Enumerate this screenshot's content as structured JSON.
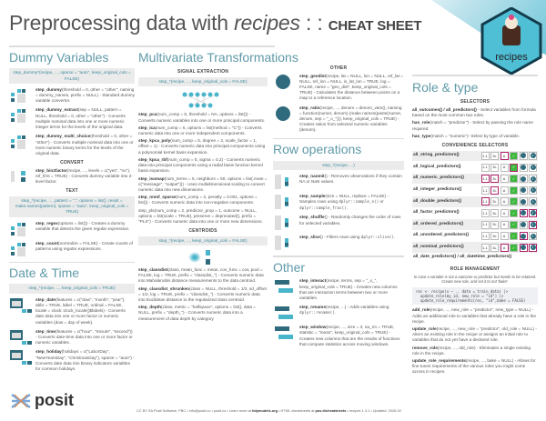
{
  "title": {
    "pre": "Preprocessing data with ",
    "pkg": "recipes",
    "sep": " : : ",
    "cheat": "CHEAT SHEET"
  },
  "logo": {
    "hex_text": "recipes",
    "brand": "posit"
  },
  "colors": {
    "accent": "#5f9aa8",
    "highlight": "#b0226a",
    "icon_light": "#49b5cb",
    "icon_dark": "#2f6b7c"
  },
  "dummy": {
    "heading": "Dummy Variables",
    "box": "step_dummy*(recipe, ..., sparse = \"auto\", keep_original_cols = FALSE)",
    "entries": [
      {
        "name": "step_dummy",
        "args": "(threshold = 0, other = \"other\", naming = dummy_names, prefix = NULL)",
        "desc": " - Standard dummy variable converter."
      },
      {
        "name": "step_dummy_extract",
        "args": "(sep = NULL, pattern = NULL, threshold = 0, other = \"other\")",
        "desc": " - Converts multiple nominal data into one or more numeric integer terms for the levels of the original data."
      },
      {
        "name": "step_dummy_multi_choice",
        "args": "(threshold = 0, other = \"other\")",
        "desc": " - Converts multiple nominal data into one or more numeric binary terms for the levels of the original data."
      }
    ],
    "convert_label": "CONVERT",
    "convert": [
      {
        "name": "step_bin2factor",
        "args": "(recipe, ..., levels = c(\"yes\", \"no\"), ref_first = TRUE)",
        "desc": " - Converts dummy variable into 2-level factor."
      }
    ],
    "text_label": "TEXT",
    "text_box": "step_*(recipe, ..., pattern = \".\", options = list(), result = make.names(pattern), sparse = \"auto\", keep_original_cols = TRUE)",
    "regex_icon_words": [
      "recipes",
      "is",
      "great"
    ],
    "text": [
      {
        "name": "step_regex",
        "args": "(options = list())",
        "desc": " - Creates a dummy variable that detects the given regular expression."
      },
      {
        "name": "step_count",
        "args": "(normalize = FALSE)",
        "desc": " - Create counts of patterns using regular expressions."
      }
    ]
  },
  "date": {
    "heading": "Date & Time",
    "box": "step_*(recipe, ..., keep_original_cols = TRUE)",
    "entries": [
      {
        "name": "step_date",
        "args": "(features = c(\"dow\", \"month\", \"year\"), abbr = TRUE, label = TRUE, ordinal = FALSE, locale = clock::clock_locale()$labels)",
        "desc": " - Converts date data into one or more factor or numeric variables (dow = day of week)."
      },
      {
        "name": "step_time",
        "args": "(features = c(\"hour\", \"minute\", \"second\"))",
        "desc": " - Converts date-time data into one or more factor or numeric variables."
      },
      {
        "name": "step_holiday",
        "args": "(holidays = c(\"LaborDay\", \"NewYearsDay\", \"ChristmasDay\"), sparse = \"auto\")",
        "desc": " - Converts date data into binary indicators variables for common holidays."
      }
    ]
  },
  "multi": {
    "heading": "Multivariate Transformations",
    "signal_label": "SIGNAL EXTRACTION",
    "signal_box": "step_*(recipe, ..., keep_original_cols = FALSE)",
    "signal": [
      {
        "name": "step_pca",
        "args": "(num_comp = 5, threshold = NA, options = list())",
        "desc": " - Converts numeric variables into one or more principal components."
      },
      {
        "name": "step_ica",
        "args": "(num_comp = 5, options = list(method = \"C\"))",
        "desc": " - Converts numeric data into one or more independent components."
      },
      {
        "name": "step_kpca_poly",
        "args": "(num_comp = 5, degree = 2, scale_factor = 1, offset = 1)",
        "desc": " - Converts numeric data into principal components using a polynomial kernel basis expansion."
      },
      {
        "name": "step_kpca_rbf",
        "args": "(num_comp = 5, sigma = 0.2)",
        "desc": " - Converts numeric data into principal components using a radial basis function kernel basis expansion."
      },
      {
        "name": "step_isomap",
        "args": "(num_terms = 5, neighbors = 50, options = list(.mute = c(\"message\", \"output\")))",
        "desc": " - Uses multidimensional scaling to convert numeric data into new dimensions."
      },
      {
        "name": "step_nnmf_sparse",
        "args": "(num_comp = 2, penalty = 0.001, options = list())",
        "desc": " - Converts numeric data into non-negative components."
      },
      {
        "name": "",
        "args": "step_pls(num_comp = 2, predictor_prop = 1, outcome = NULL, options = list(scale = TRUE), preserve = deprecated(), prefix = \"PLS\")",
        "desc": " - Converts numeric data into one or more new dimensions."
      }
    ],
    "centroids_label": "CENTROIDS",
    "centroids_box": "step_*(recipe, ..., keep_original_cols = FALSE)",
    "centroids": [
      {
        "name": "step_classdist",
        "args": "(class, mean_func = mean, cov_func = cov, pool = FALSE, log = TRUE, prefix = \"classdist_\")",
        "desc": " - Converts numeric data into Mahalanobis distance measurements to the data centroid."
      },
      {
        "name": "step_classdist_shrunken",
        "args": "(class = NULL, threshold = 1/2, sd_offset = 1/2, log = TRUE, prefix = \"classdist_\")",
        "desc": " - Converts numeric data into Euclidean distance to the regularized class centroid."
      },
      {
        "name": "step_depth",
        "args": "(class, metric = \"halfspace\", options = list(), data = NULL, prefix = \"depth_\")",
        "desc": " - Converts numeric data into a measurement of data depth by category"
      }
    ]
  },
  "other_mv": {
    "label": "OTHER",
    "entries": [
      {
        "name": "step_geodist",
        "args": "(recipe, lat = NULL, lon = NULL, ref_lat = NULL, ref_lon = NULL, is_lat_lon = TRUE, log = FALSE, name = \"geo_dist\", keep_original_cols = TRUE)",
        "desc": " - Calculates the distance between points on a map to a reference location."
      },
      {
        "name": "step_ratio",
        "args": "(recipe, ..., denom = denom_vars(), naming = function(numer, denom) (make.names(paste(numer, denom, sep = \"_o_\"))), keep_original_cols = TRUE)",
        "desc": " - Creates ratios from selected numeric variables (denom)."
      }
    ],
    "ratio_icon_label": "denom"
  },
  "rows": {
    "heading": "Row operations",
    "box": "step_*(recipe, ...)",
    "entries": [
      {
        "name": "step_naomit",
        "args": "()",
        "desc": " - Removes observations if they contain NA or NaN values."
      },
      {
        "name": "step_sample",
        "args": "(size = NULL, replace = FALSE)",
        "desc": " - Samples rows using ",
        "code": "dplyr::sample_n()",
        "desc2": " or ",
        "code2": "dplyr::sample_frac()",
        "desc3": "."
      },
      {
        "name": "step_shuffle",
        "args": "()",
        "desc": " - Randomly changes the order of rows for selected variables."
      },
      {
        "name": "step_slice",
        "args": "()",
        "desc": " - Filters rows using ",
        "code": "dplyr::slice()",
        "desc2": "."
      }
    ]
  },
  "other": {
    "heading": "Other",
    "entries": [
      {
        "name": "step_interact",
        "args": "(recipe, terms, sep = \"_x_\", keep_original_cols = TRUE)",
        "desc": " - Creates new columns that are interaction terms between two or more variables."
      },
      {
        "name": "step_rename",
        "args": "(recipe, ...)",
        "desc": " - Adds variables using ",
        "code": "dplyr::rename()",
        "desc2": "."
      },
      {
        "name": "step_window",
        "args": "(recipe, ..., size = 3, na_rm = TRUE, statistic = \"mean\", keep_original_cols = TRUE)",
        "desc": " - Creates new columns that are the results of functions that compute statistics across moving windows."
      }
    ]
  },
  "role": {
    "heading": "Role & type",
    "selectors_label": "SELECTORS",
    "selectors": [
      {
        "name": "all_outcomes() / all_predictors()",
        "desc": " - Select variables from formula based on the most common two roles."
      },
      {
        "name": "has_role",
        "args": "(match = \"predictor\")",
        "desc": " - Select by passing the role name required."
      },
      {
        "name": "has_type",
        "args": "(match = \"numeric\")",
        "desc": "- Select by type of variable."
      }
    ],
    "convenience_label": "CONVENIENCE SELECTORS",
    "chip_labels": [
      "1.1",
      "3L",
      "A",
      "check",
      "circle",
      "info"
    ],
    "table": [
      {
        "name": "all_string_predictors()",
        "on": [
          "A"
        ]
      },
      {
        "name": "all_logical_predictors()",
        "on": [
          "check"
        ]
      },
      {
        "name": "all_numeric_predictors()",
        "on": [
          "1.1",
          "3L"
        ]
      },
      {
        "name": "all_integer_predictors()",
        "on": [
          "3L"
        ]
      },
      {
        "name": "all_double_predictors()",
        "on": [
          "1.1"
        ]
      },
      {
        "name": "all_factor_predictors()",
        "on": [
          "circle",
          "info"
        ]
      },
      {
        "name": "all_ordered_predictors()",
        "on": [
          "info"
        ]
      },
      {
        "name": "all_unordered_predictors()",
        "on": [
          "circle"
        ]
      },
      {
        "name": "all_nominal_predictors()",
        "on": [
          "A",
          "circle",
          "info"
        ]
      },
      {
        "name": "all_date_predictors() / all_datetime_predictors()",
        "on": null
      }
    ],
    "mgmt_label": "ROLE MANAGEMENT",
    "note": "In case a variable is not a outcome or predictor but needs to be retained. Create new role, and set it to not 'bake'.",
    "code": [
      "rec <- recipe(x ~ ., data = train_data) |>",
      "  update_role(my_id, new_role = \"id\") |>",
      "  update_role_requirements(rec, \"id\",bake = FALSE)"
    ],
    "mgmt": [
      {
        "name": "add_role",
        "args": "(recipe, ..., new_role = \"predictor\", new_type = NULL)",
        "desc": " - Adds an additional role to variables that already have a role in the recipe."
      },
      {
        "name": "update_role",
        "args": "(recipe, ..., new_role = \"predictor\", old_role = NULL)",
        "desc": " - Alters an existing role in the recipe or assigns an initial role to variables that do not yet have a declared role."
      },
      {
        "name": "remove_role",
        "args": "(recipe, ..., old_role)",
        "desc": " - Eliminates a single existing role in the recipe."
      },
      {
        "name": "update_role_requirements",
        "args": "(recipe, ..., bake = NULL)",
        "desc": " - Allows for fine tunes requirements of the various roles you might come across in recipes."
      }
    ]
  },
  "footer": {
    "a": "CC BY SA Posit Software, PBC • info@posit.co • posit.co • Learn more at ",
    "b": "tidymodels.org",
    "c": " • HTML cheatsheets at ",
    "d": "pos.it/cheatsheets",
    "e": " • recipes  1.3.1 • Updated:  2026-02"
  }
}
